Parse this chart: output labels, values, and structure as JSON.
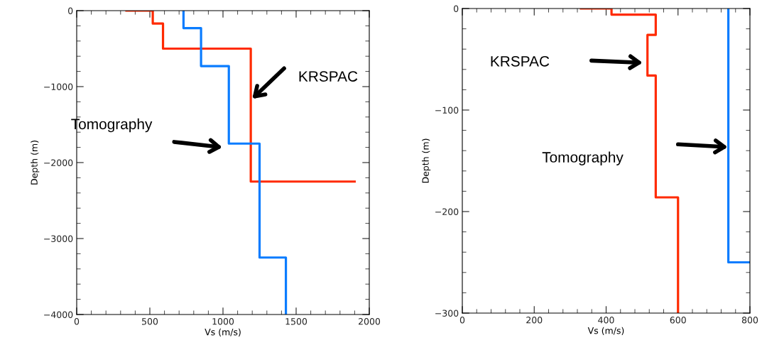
{
  "chart_data": [
    {
      "type": "line",
      "xlabel": "Vs (m/s)",
      "ylabel": "Depth (m)",
      "xlim": [
        0,
        2000
      ],
      "ylim": [
        -4000,
        0
      ],
      "xticks": [
        0,
        500,
        1000,
        1500,
        2000
      ],
      "yticks": [
        {
          "value": -4000,
          "label": "−4000"
        },
        {
          "value": -3000,
          "label": "−3000"
        },
        {
          "value": -2000,
          "label": "−2000"
        },
        {
          "value": -1000,
          "label": "−1000"
        },
        0
      ],
      "grid": false,
      "series": [
        {
          "color": "#ff2a00",
          "x": [
            340,
            520,
            520,
            590,
            590,
            1190,
            1190,
            1900
          ],
          "values": [
            0,
            0,
            -170,
            -170,
            -500,
            -500,
            -2250,
            -2250
          ]
        },
        {
          "color": "#0a7cff",
          "x": [
            730,
            730,
            850,
            850,
            1040,
            1040,
            1250,
            1250,
            1430,
            1430
          ],
          "values": [
            0,
            -230,
            -230,
            -730,
            -730,
            -1750,
            -1750,
            -3250,
            -3250,
            -4000
          ]
        }
      ],
      "annotations": [
        "KRSPAC",
        "Tomography"
      ]
    },
    {
      "type": "line",
      "xlabel": "Vs (m/s)",
      "ylabel": "Depth (m)",
      "xlim": [
        0,
        800
      ],
      "ylim": [
        -300,
        0
      ],
      "xticks": [
        0,
        200,
        400,
        600,
        800
      ],
      "yticks": [
        {
          "value": -300,
          "label": "−300"
        },
        {
          "value": -200,
          "label": "−200"
        },
        {
          "value": -100,
          "label": "−100"
        },
        0
      ],
      "grid": false,
      "series": [
        {
          "color": "#ff2a00",
          "x": [
            330,
            415,
            415,
            538,
            538,
            515,
            515,
            538,
            538,
            600,
            600
          ],
          "values": [
            0,
            0,
            -6,
            -6,
            -26,
            -26,
            -66,
            -66,
            -186,
            -186,
            -300
          ]
        },
        {
          "color": "#0a7cff",
          "x": [
            740,
            740,
            800
          ],
          "values": [
            0,
            -250,
            -250
          ]
        }
      ],
      "annotations": [
        "KRSPAC",
        "Tomography"
      ]
    }
  ]
}
